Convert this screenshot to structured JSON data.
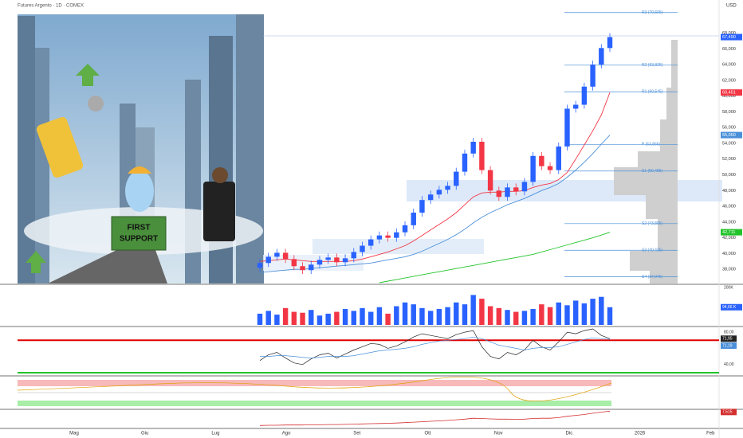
{
  "chart_data": {
    "type": "candlestick",
    "title": "Futures Argento · 1D · COMEX",
    "currency": "USD",
    "illustration": {
      "sign_lines": [
        "FIRST",
        "SUPPORT"
      ]
    },
    "x_labels": [
      "Mag",
      "Giu",
      "Lug",
      "Ago",
      "Set",
      "Ott",
      "Nov",
      "Dic",
      "2026",
      "Feb"
    ],
    "ylim": [
      36.2,
      72.2
    ],
    "yticks": [
      {
        "value": 68,
        "label": "68,000"
      },
      {
        "value": 66,
        "label": "66,000"
      },
      {
        "value": 64,
        "label": "64,000"
      },
      {
        "value": 62,
        "label": "62,000"
      },
      {
        "value": 60,
        "label": "60,000"
      },
      {
        "value": 58,
        "label": "58,000"
      },
      {
        "value": 56,
        "label": "56,000"
      },
      {
        "value": 54,
        "label": "54,000"
      },
      {
        "value": 52,
        "label": "52,000"
      },
      {
        "value": 50,
        "label": "50,000"
      },
      {
        "value": 48,
        "label": "48,000"
      },
      {
        "value": 46,
        "label": "46,000"
      },
      {
        "value": 44,
        "label": "44,000"
      },
      {
        "value": 42,
        "label": "42,000"
      },
      {
        "value": 40,
        "label": "40,000"
      },
      {
        "value": 38,
        "label": "38,000"
      }
    ],
    "up_color": "#2962ff",
    "down_color": "#f23645",
    "open": [
      38.2,
      38.8,
      39.6,
      40.1,
      39.3,
      38.4,
      37.9,
      38.6,
      39.2,
      39.5,
      38.9,
      39.4,
      40.2,
      41.0,
      41.8,
      42.3,
      42.0,
      42.7,
      43.6,
      45.2,
      46.8,
      47.5,
      48.1,
      48.6,
      50.4,
      52.7,
      54.2,
      50.6,
      48.0,
      47.2,
      48.4,
      47.9,
      49.1,
      52.4,
      51.1,
      50.6,
      53.6,
      58.4,
      58.9,
      61.2,
      64.0,
      66.1
    ],
    "high": [
      39.3,
      40.1,
      40.6,
      40.6,
      39.8,
      38.9,
      39.1,
      39.7,
      40.0,
      40.0,
      39.9,
      40.7,
      41.5,
      42.3,
      42.8,
      42.8,
      43.2,
      44.1,
      45.7,
      47.3,
      48.0,
      48.6,
      49.1,
      50.9,
      53.2,
      54.7,
      54.7,
      51.1,
      48.5,
      48.9,
      48.9,
      49.6,
      52.9,
      52.9,
      51.6,
      54.1,
      58.9,
      59.4,
      61.7,
      64.5,
      66.6,
      67.99
    ],
    "low": [
      37.7,
      38.3,
      39.1,
      38.8,
      37.9,
      37.4,
      37.4,
      38.1,
      38.7,
      38.4,
      38.4,
      38.9,
      39.7,
      40.5,
      41.3,
      41.5,
      41.5,
      42.2,
      43.1,
      44.7,
      46.3,
      47.0,
      47.6,
      48.1,
      49.9,
      52.2,
      50.1,
      47.5,
      46.7,
      46.7,
      47.4,
      47.4,
      48.6,
      50.6,
      50.1,
      50.1,
      53.1,
      57.9,
      58.4,
      60.7,
      63.5,
      65.6
    ],
    "close": [
      38.8,
      39.6,
      40.1,
      39.3,
      38.4,
      37.9,
      38.6,
      39.2,
      39.5,
      38.9,
      39.4,
      40.2,
      41.0,
      41.8,
      42.3,
      42.0,
      42.7,
      43.6,
      45.2,
      46.8,
      47.5,
      48.1,
      48.6,
      50.4,
      52.7,
      54.2,
      50.6,
      48.0,
      47.2,
      48.4,
      47.9,
      49.1,
      52.4,
      51.1,
      50.6,
      53.6,
      58.4,
      58.9,
      61.2,
      64.0,
      66.1,
      67.49
    ],
    "series": [
      {
        "color": "#f23645",
        "values": [
          39.0,
          39.1,
          39.2,
          39.3,
          39.2,
          39.1,
          39.0,
          39.0,
          39.0,
          39.0,
          39.0,
          39.1,
          39.3,
          39.6,
          39.9,
          40.2,
          40.6,
          41.0,
          41.6,
          42.3,
          43.0,
          43.7,
          44.4,
          45.2,
          46.2,
          47.2,
          47.7,
          47.8,
          47.8,
          47.9,
          47.9,
          48.0,
          48.4,
          48.7,
          48.9,
          49.4,
          50.3,
          52.0,
          53.8,
          55.6,
          57.6,
          60.45
        ]
      },
      {
        "color": "#4a90d9",
        "values": [
          37.6,
          37.7,
          37.8,
          37.9,
          38.0,
          38.0,
          38.1,
          38.2,
          38.3,
          38.4,
          38.5,
          38.6,
          38.7,
          38.8,
          39.0,
          39.2,
          39.4,
          39.6,
          39.9,
          40.3,
          40.8,
          41.3,
          41.8,
          42.4,
          43.1,
          43.9,
          44.6,
          45.2,
          45.7,
          46.2,
          46.6,
          47.0,
          47.5,
          48.0,
          48.4,
          48.9,
          49.7,
          50.6,
          51.6,
          52.7,
          53.9,
          55.05
        ]
      },
      {
        "color": "#22c32a",
        "values": [
          null,
          null,
          null,
          null,
          null,
          null,
          null,
          null,
          null,
          null,
          null,
          null,
          null,
          null,
          36.3,
          36.5,
          36.7,
          36.9,
          37.1,
          37.3,
          37.5,
          37.7,
          37.9,
          38.1,
          38.3,
          38.5,
          38.7,
          38.9,
          39.1,
          39.3,
          39.5,
          39.7,
          39.9,
          40.2,
          40.5,
          40.8,
          41.1,
          41.4,
          41.7,
          42.0,
          42.35,
          42.71
        ]
      }
    ],
    "price_labels": [
      {
        "value": 67.49,
        "label": "67,490",
        "color": "#2962ff"
      },
      {
        "value": 60.45,
        "label": "60,451",
        "color": "#f23645"
      },
      {
        "value": 55.05,
        "label": "55,050",
        "color": "#4a90d9"
      },
      {
        "value": 42.71,
        "label": "42,711",
        "color": "#22c32a"
      }
    ],
    "pivots": [
      {
        "label": "R3 (70,605)",
        "value": 70.605
      },
      {
        "label": "R2 (63,925)",
        "value": 63.925
      },
      {
        "label": "R1 (60,545)",
        "value": 60.545
      },
      {
        "label": "P (53,865)",
        "value": 53.865
      },
      {
        "label": "S1 (50,485)",
        "value": 50.485
      },
      {
        "label": "S2 (43,805)",
        "value": 43.805
      },
      {
        "label": "S3 (40,425)",
        "value": 40.425
      },
      {
        "label": "S4 (37,045)",
        "value": 37.045
      }
    ],
    "volume": {
      "values": [
        60,
        75,
        55,
        90,
        70,
        65,
        80,
        50,
        60,
        70,
        85,
        75,
        90,
        70,
        95,
        60,
        100,
        120,
        110,
        90,
        75,
        85,
        95,
        120,
        110,
        160,
        140,
        100,
        90,
        80,
        70,
        75,
        85,
        110,
        95,
        120,
        105,
        130,
        115,
        140,
        150,
        94.66
      ],
      "ylim": [
        0,
        200
      ],
      "yticks": [
        {
          "value": 200,
          "label": "200K"
        }
      ],
      "last": {
        "value": 94.66,
        "label": "94,66 K"
      }
    },
    "rsi": {
      "ylim": [
        27,
        86
      ],
      "yticks": [
        {
          "value": 80,
          "label": "80,00"
        },
        {
          "value": 40,
          "label": "40,00"
        }
      ],
      "levels": [
        {
          "value": 70,
          "color": "#e00000"
        },
        {
          "value": 30,
          "color": "#22c32a"
        }
      ],
      "series": [
        {
          "color": "#222222",
          "values": [
            45,
            52,
            55,
            48,
            42,
            40,
            47,
            52,
            54,
            48,
            53,
            58,
            62,
            66,
            65,
            60,
            63,
            68,
            74,
            78,
            76,
            74,
            72,
            77,
            80,
            82,
            62,
            50,
            47,
            55,
            52,
            58,
            70,
            62,
            58,
            68,
            80,
            78,
            82,
            84,
            76,
            71.95
          ],
          "last_label": "71,95"
        },
        {
          "color": "#4a90d9",
          "values": [
            50,
            50,
            51,
            51,
            50,
            49,
            48,
            49,
            50,
            50,
            50,
            51,
            53,
            55,
            57,
            58,
            59,
            60,
            62,
            65,
            67,
            69,
            70,
            71,
            72,
            74,
            72,
            68,
            64,
            62,
            60,
            58,
            60,
            61,
            61,
            62,
            65,
            68,
            71,
            73,
            72,
            71.19
          ],
          "last_label": "71,19"
        }
      ]
    },
    "lower": {
      "color": "#d32f2f",
      "ylim": [
        0,
        8
      ],
      "values": [
        1.0,
        1.1,
        1.1,
        1.2,
        1.2,
        1.2,
        1.3,
        1.3,
        1.4,
        1.4,
        1.5,
        1.6,
        1.7,
        1.8,
        1.9,
        2.0,
        2.1,
        2.3,
        2.5,
        2.7,
        2.9,
        3.1,
        3.3,
        3.6,
        3.9,
        4.3,
        4.2,
        4.0,
        3.9,
        3.9,
        3.8,
        3.9,
        4.2,
        4.3,
        4.3,
        4.6,
        5.2,
        5.6,
        6.0,
        6.6,
        7.1,
        7.515
      ],
      "last_label": "7,515"
    }
  }
}
